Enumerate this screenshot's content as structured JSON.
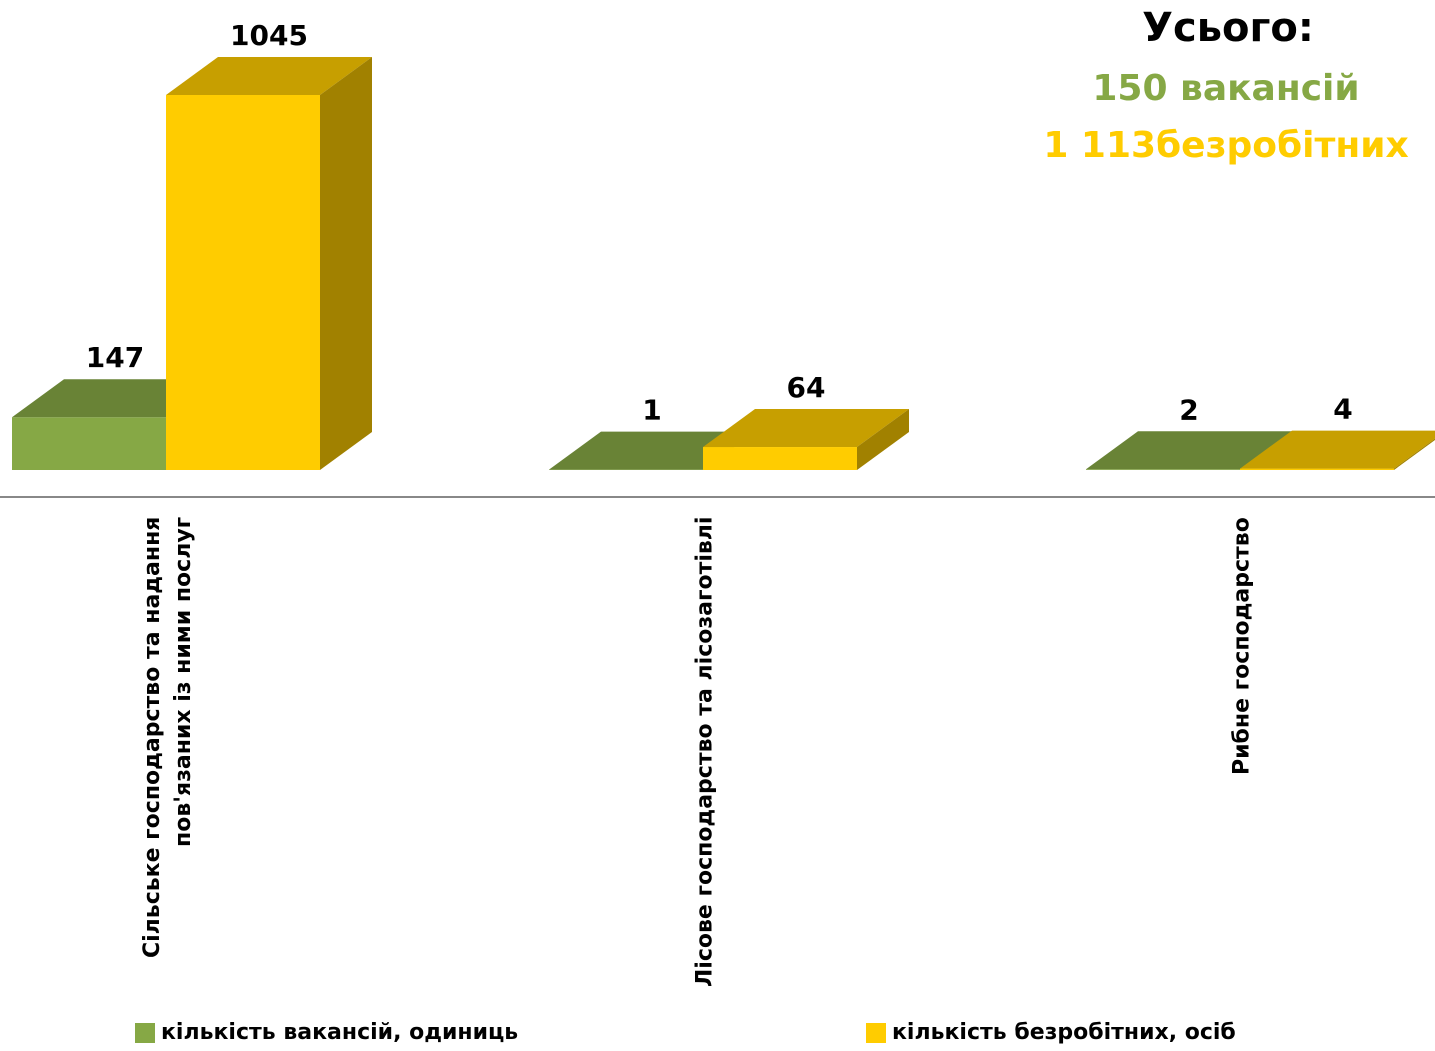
{
  "chart_data": {
    "type": "bar3d",
    "categories": [
      "Сільське господарство та надання пов'язаних із ними послуг",
      "Лісове господарство та лісозаготівлі",
      "Рибне господарство"
    ],
    "series": [
      {
        "name": "кількість вакансій, одиниць",
        "color": "#86a845",
        "values": [
          147,
          1,
          2
        ]
      },
      {
        "name": "кількість безробітних, осіб",
        "color": "#ffcc00",
        "values": [
          1045,
          64,
          4
        ]
      }
    ],
    "annotations": [
      "Усього:",
      "150 вакансій",
      "1 113безробітних"
    ],
    "legend": "bottom"
  }
}
